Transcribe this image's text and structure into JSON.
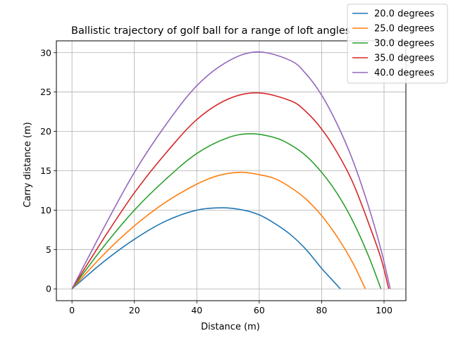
{
  "chart_data": {
    "type": "line",
    "title": "Ballistic trajectory of golf ball for a range of loft angles",
    "xlabel": "Distance (m)",
    "ylabel": "Carry distance (m)",
    "xlim": [
      -5,
      107
    ],
    "ylim": [
      -1.5,
      31.5
    ],
    "xticks": [
      0,
      20,
      40,
      60,
      80,
      100
    ],
    "yticks": [
      0,
      5,
      10,
      15,
      20,
      25,
      30
    ],
    "grid": true,
    "legend_position": "top-right",
    "series": [
      {
        "name": "20.0 degrees",
        "color": "#1f77b4",
        "x": [
          0,
          10,
          20,
          30,
          40,
          48.5,
          55,
          60,
          65,
          70,
          75,
          80,
          83,
          86
        ],
        "y": [
          0,
          3.4,
          6.3,
          8.6,
          10.0,
          10.3,
          10.0,
          9.4,
          8.3,
          6.9,
          5.0,
          2.6,
          1.3,
          0
        ]
      },
      {
        "name": "25.0 degrees",
        "color": "#ff7f0e",
        "x": [
          0,
          10,
          20,
          30,
          40,
          47,
          54,
          60,
          65,
          70,
          75,
          80,
          85,
          90,
          94
        ],
        "y": [
          0,
          4.3,
          8.0,
          11.0,
          13.3,
          14.4,
          14.8,
          14.5,
          14.0,
          12.9,
          11.4,
          9.3,
          6.6,
          3.3,
          0
        ]
      },
      {
        "name": "30.0 degrees",
        "color": "#2ca02c",
        "x": [
          0,
          10,
          20,
          30,
          40,
          50,
          57.5,
          65,
          70,
          75,
          80,
          85,
          90,
          95,
          99
        ],
        "y": [
          0,
          5.3,
          10.0,
          13.9,
          17.2,
          19.2,
          19.7,
          19.2,
          18.3,
          16.9,
          14.8,
          12.1,
          8.6,
          4.2,
          0
        ]
      },
      {
        "name": "35.0 degrees",
        "color": "#d62728",
        "x": [
          0,
          10,
          20,
          30,
          40,
          50,
          59.5,
          70,
          75,
          80,
          85,
          90,
          95,
          99,
          101.5
        ],
        "y": [
          0,
          6.3,
          12.2,
          17.2,
          21.5,
          24.1,
          24.9,
          23.9,
          22.5,
          20.3,
          17.3,
          13.5,
          8.4,
          3.9,
          0
        ]
      },
      {
        "name": "40.0 degrees",
        "color": "#9467bd",
        "x": [
          0,
          10,
          20,
          30,
          40,
          50,
          59.5,
          70,
          75,
          80,
          85,
          90,
          95,
          99,
          102
        ],
        "y": [
          0,
          7.6,
          14.8,
          20.8,
          25.8,
          28.9,
          30.1,
          29.0,
          27.3,
          24.6,
          20.9,
          16.3,
          10.5,
          5.0,
          0
        ]
      }
    ]
  }
}
